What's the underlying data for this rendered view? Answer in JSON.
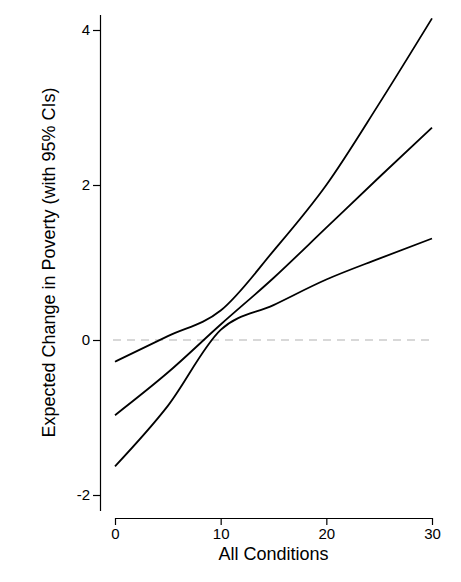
{
  "chart_data": {
    "type": "line",
    "x_label": "All Conditions",
    "y_label": "Expected Change in Poverty (with 95% CIs)",
    "x": [
      0,
      5,
      10,
      15,
      20,
      25,
      30
    ],
    "series": [
      {
        "color": "#000000",
        "line_style": "solid",
        "values": [
          -0.28,
          0.05,
          0.38,
          1.15,
          2.0,
          3.05,
          4.15
        ]
      },
      {
        "color": "#000000",
        "line_style": "solid",
        "values": [
          -0.97,
          -0.42,
          0.2,
          0.8,
          1.45,
          2.1,
          2.74
        ]
      },
      {
        "color": "#000000",
        "line_style": "solid",
        "values": [
          -1.63,
          -0.85,
          0.13,
          0.45,
          0.78,
          1.05,
          1.31
        ]
      }
    ],
    "xlim": [
      0,
      30
    ],
    "xticks": [
      0,
      10,
      20,
      30
    ],
    "ylim": [
      -2.2,
      4.2
    ],
    "yticks": [
      -2,
      0,
      2,
      4
    ],
    "reference_line": {
      "y": 0,
      "color": "#cccccc",
      "line_style": "dashed"
    }
  }
}
